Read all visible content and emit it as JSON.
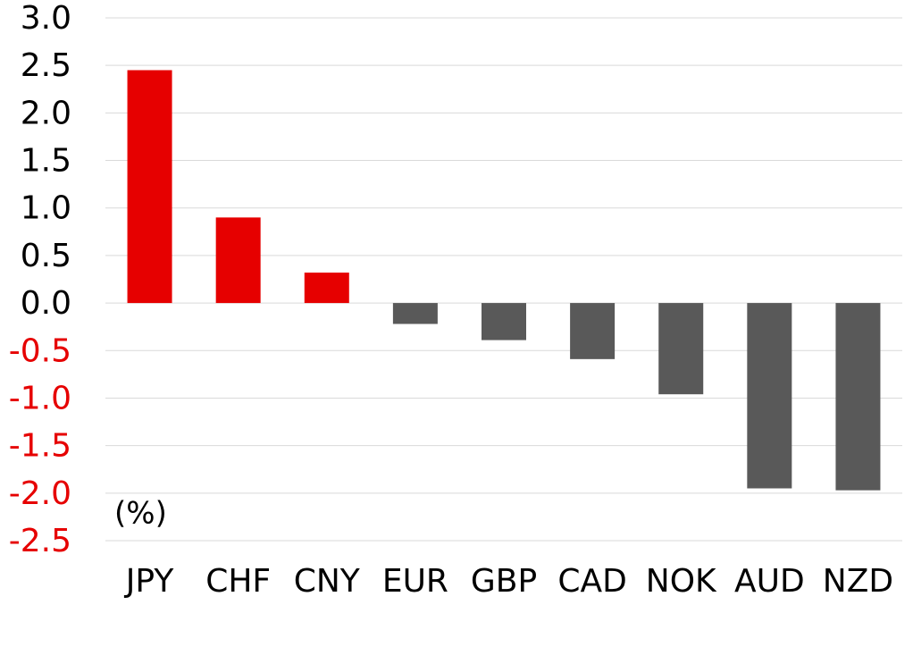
{
  "chart_data": {
    "type": "bar",
    "annotation": "(%)",
    "categories": [
      "JPY",
      "CHF",
      "CNY",
      "EUR",
      "GBP",
      "CAD",
      "NOK",
      "AUD",
      "NZD"
    ],
    "values": [
      2.45,
      0.9,
      0.32,
      -0.22,
      -0.39,
      -0.59,
      -0.96,
      -1.95,
      -1.97
    ],
    "colors": [
      "#e60000",
      "#e60000",
      "#e60000",
      "#595959",
      "#595959",
      "#595959",
      "#595959",
      "#595959",
      "#595959"
    ],
    "ylim": [
      -2.5,
      3.0
    ],
    "yticks": [
      {
        "value": 3.0,
        "label": "3.0"
      },
      {
        "value": 2.5,
        "label": "2.5"
      },
      {
        "value": 2.0,
        "label": "2.0"
      },
      {
        "value": 1.5,
        "label": "1.5"
      },
      {
        "value": 1.0,
        "label": "1.0"
      },
      {
        "value": 0.5,
        "label": "0.5"
      },
      {
        "value": 0.0,
        "label": "0.0"
      },
      {
        "value": -0.5,
        "label": "-0.5"
      },
      {
        "value": -1.0,
        "label": "-1.0"
      },
      {
        "value": -1.5,
        "label": "-1.5"
      },
      {
        "value": -2.0,
        "label": "-2.0"
      },
      {
        "value": -2.5,
        "label": "-2.5"
      }
    ],
    "grid": true,
    "tick_label_color": "#000000",
    "negative_tick_label_color": "#e60000"
  }
}
